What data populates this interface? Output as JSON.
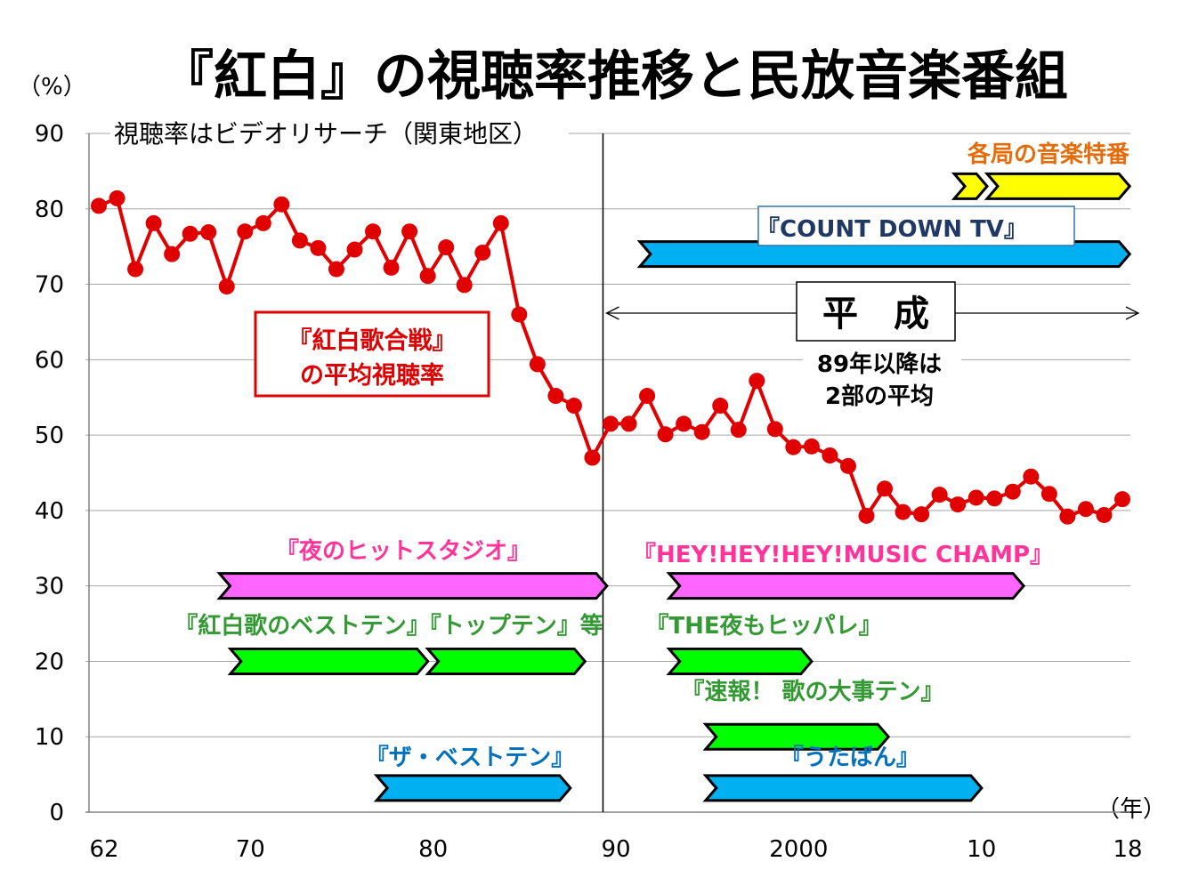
{
  "title": "『紅白』の視聴率推移と民放音楽番組",
  "subtitle": "視聴率はビデオリサーチ（関東地区）",
  "y_unit": "（%）",
  "x_unit": "（年）",
  "colors": {
    "line": "#e00000",
    "pink": "#ff66ff",
    "green": "#00ff00",
    "blue": "#00b0f0",
    "yellow": "#ffff00",
    "orange_text": "#e46c0a",
    "pink_text": "#ff3399",
    "green_text": "#339933",
    "blue_text": "#0070c0",
    "navy_text": "#1f3864",
    "red_box": "#e00000"
  },
  "chart_data": {
    "type": "line",
    "ylim": [
      0,
      90
    ],
    "yticks": [
      0,
      10,
      20,
      30,
      40,
      50,
      60,
      70,
      80,
      90
    ],
    "xtick_labels": [
      {
        "label": "62",
        "year": 1962
      },
      {
        "label": "70",
        "year": 1970
      },
      {
        "label": "80",
        "year": 1980
      },
      {
        "label": "90",
        "year": 1990
      },
      {
        "label": "2000",
        "year": 2000
      },
      {
        "label": "10",
        "year": 2010
      },
      {
        "label": "18",
        "year": 2018
      }
    ],
    "vertical_line_year": 1989,
    "series": [
      {
        "name": "『紅白歌合戦』の平均視聴率",
        "x": [
          1962,
          1963,
          1964,
          1965,
          1966,
          1967,
          1968,
          1969,
          1970,
          1971,
          1972,
          1973,
          1974,
          1975,
          1976,
          1977,
          1978,
          1979,
          1980,
          1981,
          1982,
          1983,
          1984,
          1985,
          1986,
          1987,
          1988,
          1989,
          1990,
          1991,
          1992,
          1993,
          1994,
          1995,
          1996,
          1997,
          1998,
          1999,
          2000,
          2001,
          2002,
          2003,
          2004,
          2005,
          2006,
          2007,
          2008,
          2009,
          2010,
          2011,
          2012,
          2013,
          2014,
          2015,
          2016,
          2017,
          2018
        ],
        "y": [
          80.4,
          81.4,
          72.0,
          78.1,
          74.0,
          76.7,
          76.9,
          69.7,
          77.0,
          78.1,
          80.6,
          75.8,
          74.8,
          72.0,
          74.6,
          77.0,
          72.2,
          77.0,
          71.1,
          74.9,
          69.9,
          74.2,
          78.1,
          66.0,
          59.4,
          55.2,
          53.9,
          47.0,
          51.5,
          51.5,
          55.2,
          50.1,
          51.5,
          50.4,
          53.9,
          50.7,
          57.2,
          50.8,
          48.4,
          48.5,
          47.3,
          45.9,
          39.3,
          42.9,
          39.8,
          39.5,
          42.1,
          40.8,
          41.7,
          41.6,
          42.5,
          44.5,
          42.2,
          39.2,
          40.2,
          39.4,
          41.5
        ]
      }
    ],
    "annotations": {
      "series_label_line1": "『紅白歌合戦』",
      "series_label_line2": "の平均視聴率",
      "heisei": "平　成",
      "after89_line1": "89年以降は",
      "after89_line2": "2部の平均"
    },
    "programs": [
      {
        "label": "各局の音楽特番",
        "label_color": "orange_text",
        "fill": "yellow",
        "bars": [
          [
            2008.8,
            2010.6
          ],
          [
            2010.6,
            2018.4
          ]
        ],
        "y": 83
      },
      {
        "label": "『COUNT DOWN TV』",
        "label_color": "navy_text",
        "fill": "blue",
        "boxed": true,
        "bars": [
          [
            1991.6,
            2018.4
          ]
        ],
        "y": 74
      },
      {
        "label": "『夜のヒットスタジオ』",
        "label_color": "pink_text",
        "fill": "pink",
        "bars": [
          [
            1968.6,
            1989.8
          ]
        ],
        "y": 30
      },
      {
        "label": "『HEY!HEY!HEY!MUSIC CHAMP』",
        "label_color": "pink_text",
        "fill": "pink",
        "bars": [
          [
            1993.2,
            2012.6
          ]
        ],
        "y": 30
      },
      {
        "label": "『紅白歌のベストテン』『トップテン』等",
        "label_color": "green_text",
        "fill": "green",
        "bars": [
          [
            1969.2,
            1980.0
          ],
          [
            1980.0,
            1988.6
          ]
        ],
        "y": 20
      },
      {
        "label": "『THE夜もヒッパレ』",
        "label_color": "green_text",
        "fill": "green",
        "bars": [
          [
            1993.2,
            2001.0
          ]
        ],
        "y": 20
      },
      {
        "label": "『速報！ 歌の大事テン』",
        "label_color": "green_text",
        "fill": "green",
        "bars": [
          [
            1995.2,
            2005.2
          ]
        ],
        "y": 10
      },
      {
        "label": "『ザ・ベストテン』",
        "label_color": "blue_text",
        "fill": "blue",
        "bars": [
          [
            1977.2,
            1987.8
          ]
        ],
        "y": 3.2
      },
      {
        "label": "『うたばん』",
        "label_color": "blue_text",
        "fill": "blue",
        "bars": [
          [
            1995.2,
            2010.3
          ]
        ],
        "y": 3.2
      }
    ]
  }
}
